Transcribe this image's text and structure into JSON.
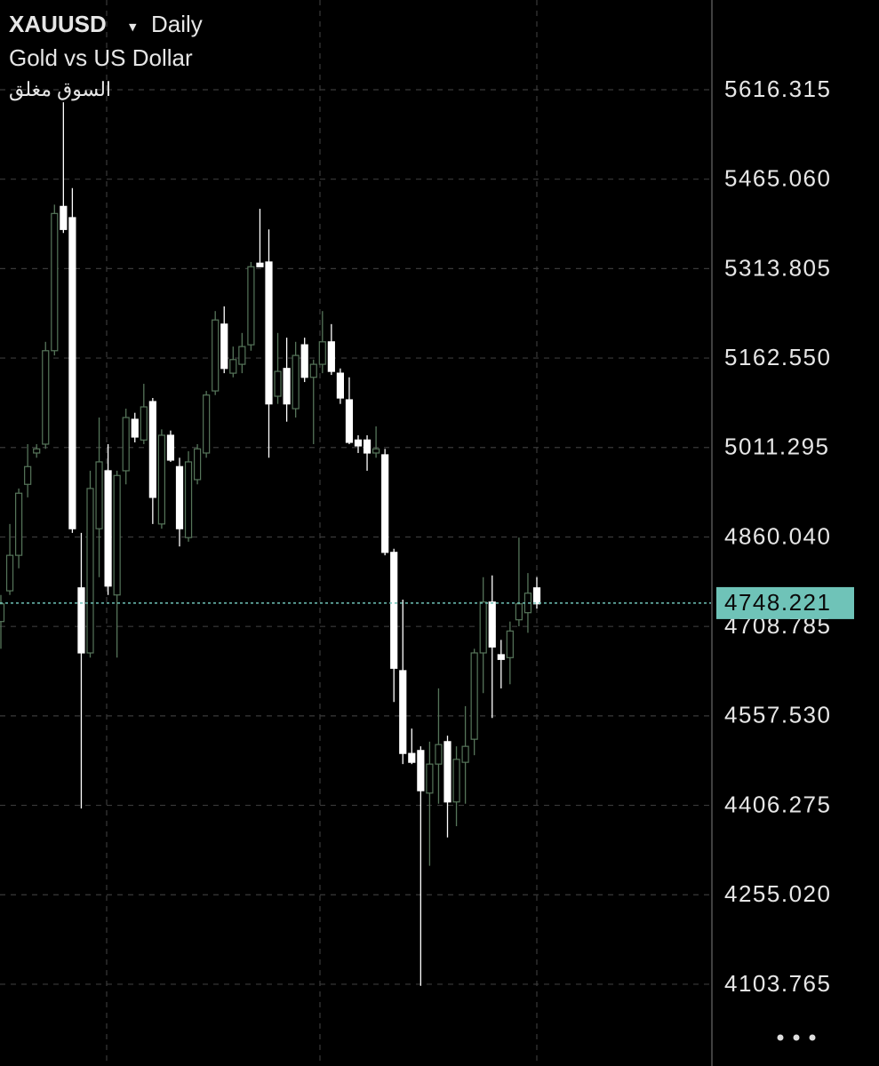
{
  "chart_data": {
    "type": "candlestick",
    "title": "XAUUSD",
    "interval": "Daily",
    "subtitle": "Gold vs US Dollar",
    "status": "السوق مغلق",
    "categories": [
      null,
      null,
      null,
      null,
      null,
      null,
      null,
      null,
      null,
      null,
      null,
      null,
      null,
      null,
      null,
      null,
      null,
      null,
      null,
      null,
      null,
      null,
      null,
      null,
      null,
      null,
      null,
      null,
      null,
      null,
      null,
      null,
      null,
      null,
      null,
      null,
      null,
      null,
      null,
      null,
      null,
      null,
      null,
      null,
      null,
      null,
      null,
      null,
      null,
      null,
      null,
      null,
      null,
      null,
      null,
      null,
      null,
      null,
      null,
      null,
      null
    ],
    "open": [
      4717,
      4769,
      4829,
      4949,
      5002,
      5017,
      5175,
      5419,
      5400,
      4774,
      4664,
      4874,
      4972,
      4762,
      4972,
      5059,
      5024,
      5089,
      4882,
      5032,
      4979,
      4859,
      4957,
      5002,
      5107,
      5220,
      5137,
      5152,
      5185,
      5323,
      5325,
      5098,
      5145,
      5077,
      5185,
      5130,
      5152,
      5190,
      5137,
      5092,
      5024,
      5024,
      5002,
      4999,
      4834,
      4634,
      4494,
      4499,
      4427,
      4476,
      4514,
      4412,
      4479,
      4518,
      4664,
      4750,
      4661,
      4656,
      4720,
      4732,
      4774
    ],
    "high": [
      4762,
      4882,
      4942,
      5017,
      5017,
      5190,
      5422,
      5595,
      5450,
      4867,
      4972,
      5062,
      5017,
      4972,
      5077,
      5070,
      5119,
      5095,
      5042,
      5040,
      4994,
      5005,
      5017,
      5107,
      5242,
      5250,
      5182,
      5205,
      5325,
      5415,
      5380,
      5205,
      5197,
      5190,
      5197,
      5160,
      5242,
      5220,
      5145,
      5130,
      5032,
      5032,
      5047,
      5009,
      4840,
      4754,
      4536,
      4506,
      4514,
      4604,
      4524,
      4506,
      4574,
      4671,
      4792,
      4795,
      4686,
      4717,
      4859,
      4799,
      4792
    ],
    "low": [
      4671,
      4762,
      4807,
      4927,
      4994,
      5009,
      5167,
      5374,
      4867,
      4401,
      4656,
      4792,
      4762,
      4656,
      4949,
      5020,
      5017,
      4882,
      4874,
      4987,
      4844,
      4852,
      4949,
      4994,
      5100,
      5137,
      5130,
      5137,
      5175,
      5317,
      4994,
      5085,
      5055,
      5062,
      5122,
      5017,
      5137,
      5134,
      5085,
      5017,
      5002,
      4972,
      4994,
      4829,
      4581,
      4476,
      4476,
      4101,
      4304,
      4409,
      4352,
      4371,
      4409,
      4491,
      4596,
      4554,
      4604,
      4611,
      4709,
      4698,
      4739
    ],
    "close": [
      4747,
      4829,
      4934,
      4979,
      5009,
      5175,
      5407,
      5380,
      4874,
      4664,
      4942,
      4987,
      4777,
      4964,
      5062,
      5029,
      5080,
      4927,
      5032,
      4990,
      4874,
      4987,
      5009,
      5100,
      5227,
      5145,
      5160,
      5182,
      5317,
      5317,
      5085,
      5140,
      5085,
      5167,
      5130,
      5152,
      5190,
      5140,
      5095,
      5020,
      5014,
      5002,
      5009,
      4834,
      4638,
      4494,
      4479,
      4431,
      4476,
      4509,
      4412,
      4484,
      4506,
      4664,
      4750,
      4674,
      4653,
      4701,
      4747,
      4765,
      4747
    ],
    "up_color": "#56755a",
    "down_color": "#ffffff",
    "ylim": [
      3965.5,
      5768.0
    ],
    "yticks": [
      5616.315,
      {
        "value": 5465.06,
        "label": "5465.060"
      },
      5313.805,
      {
        "value": 5162.55,
        "label": "5162.550"
      },
      5011.295,
      {
        "value": 4860.04,
        "label": "4860.040"
      },
      4708.785,
      {
        "value": 4557.53,
        "label": "4557.530"
      },
      4406.275,
      {
        "value": 4255.02,
        "label": "4255.020"
      },
      4103.765
    ],
    "grid": true,
    "last_price": 4748.221,
    "last_price_color": "#6fc3b8"
  }
}
